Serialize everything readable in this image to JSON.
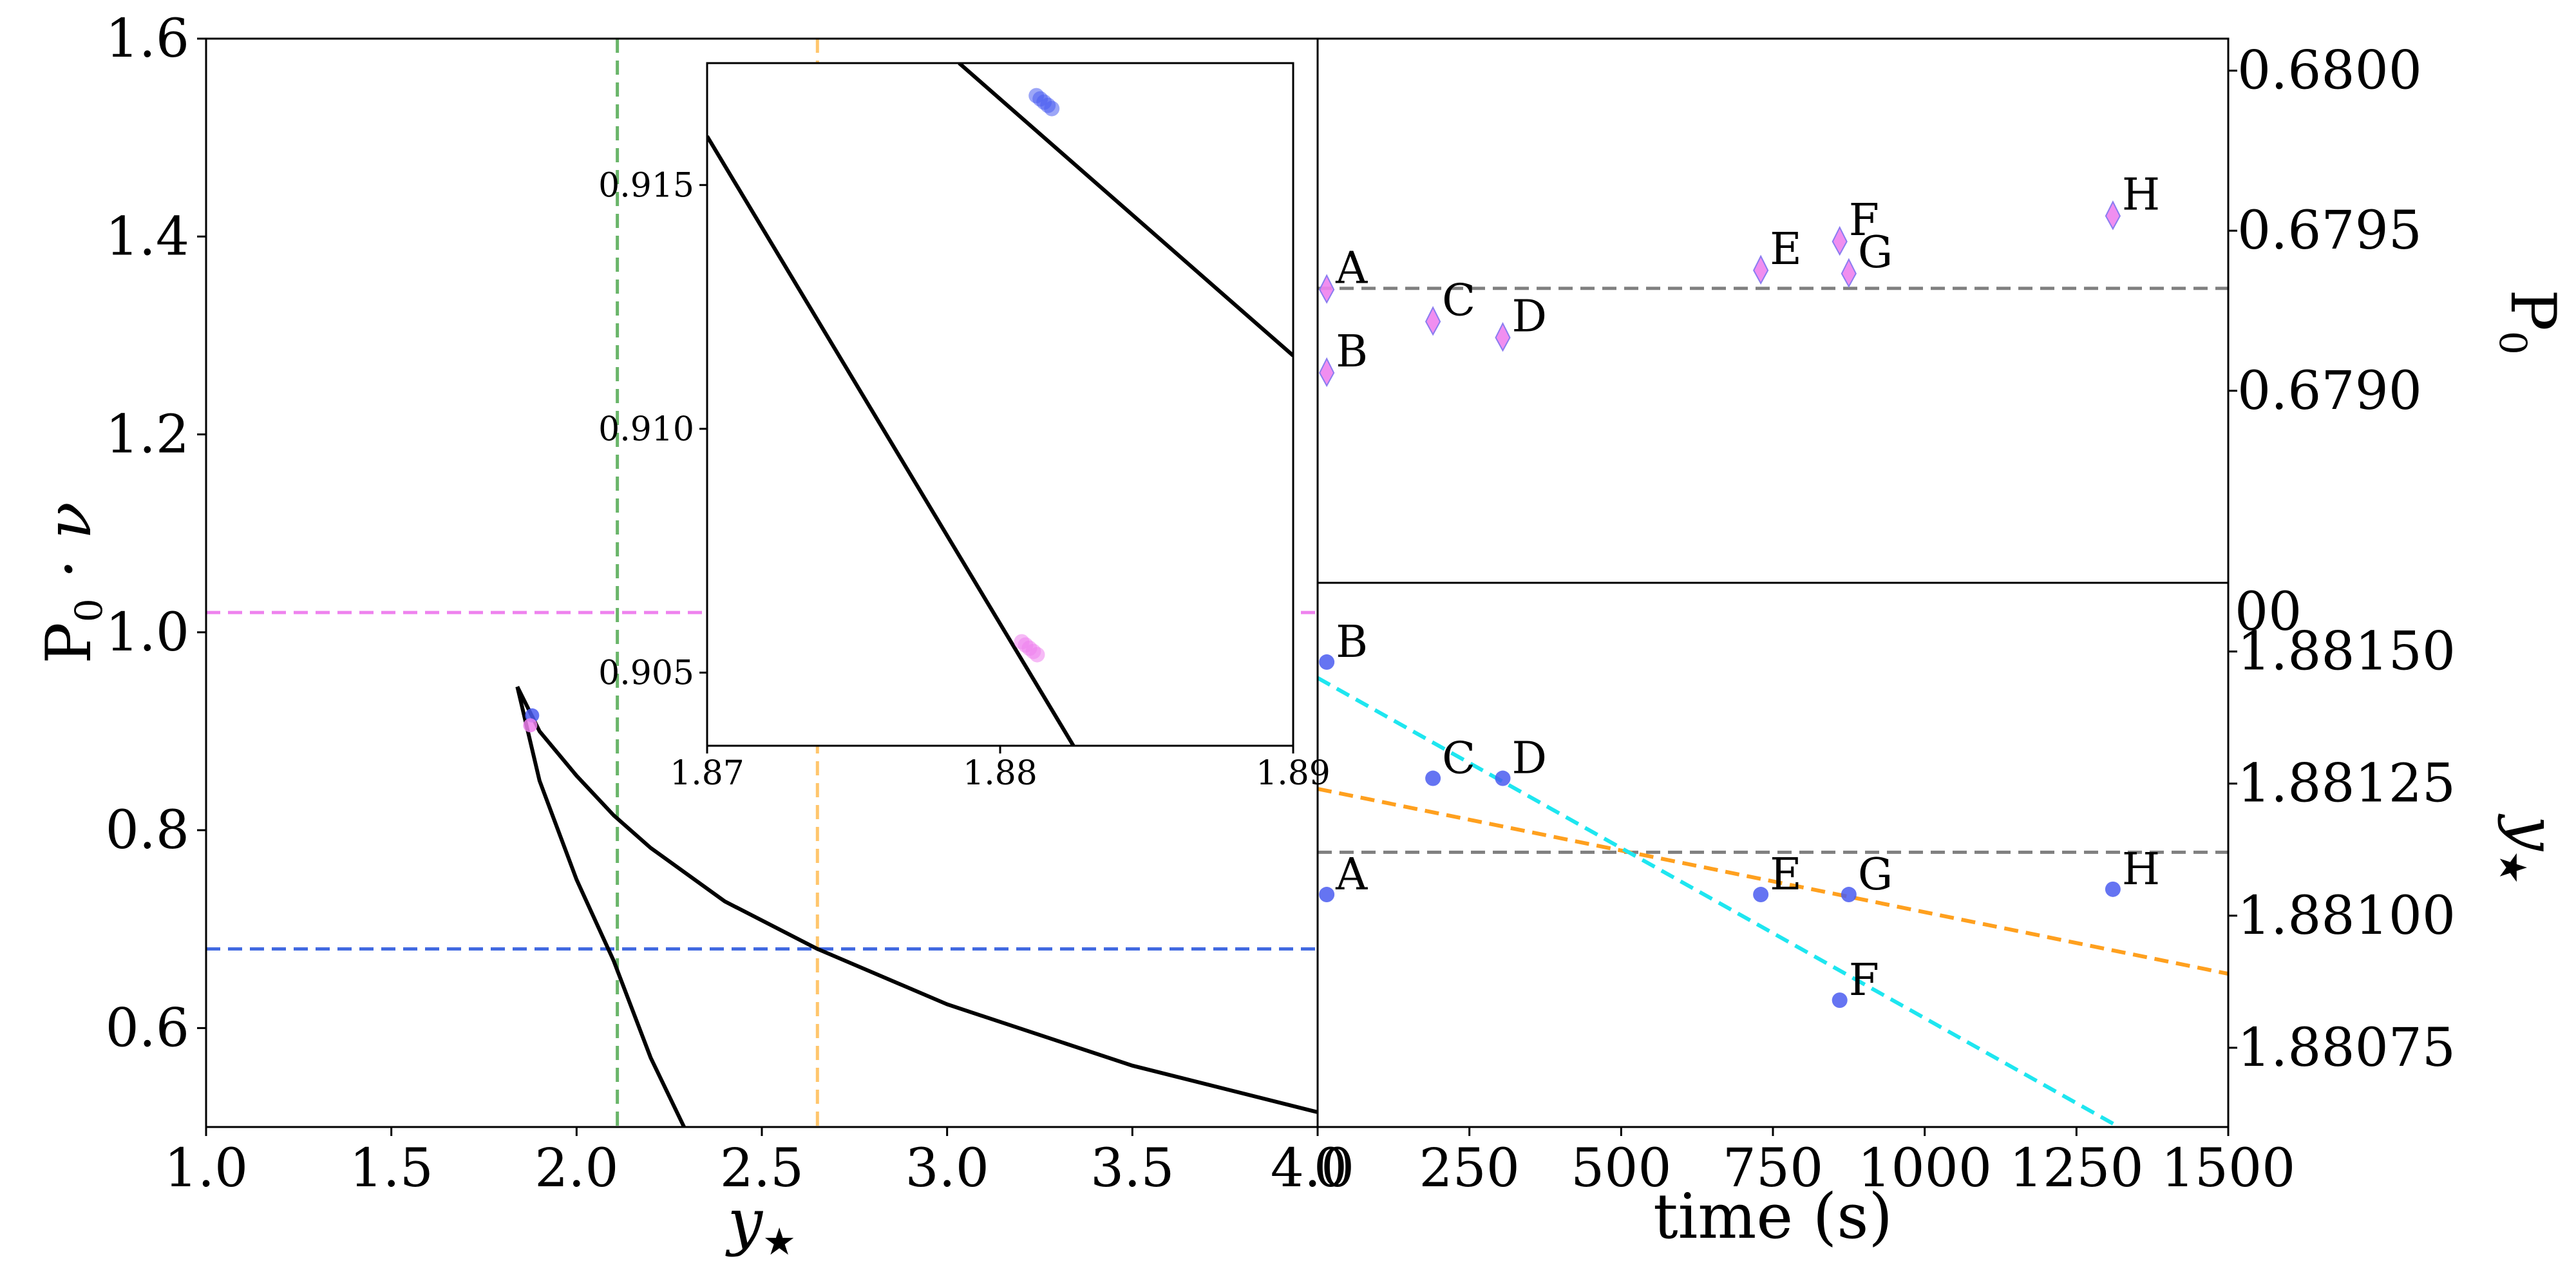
{
  "chart_data": [
    {
      "id": "main",
      "type": "line",
      "xlabel_sym": "y",
      "xlabel_sub": "★",
      "ylabel_main": "P",
      "ylabel_sub": "0",
      "ylabel_rest": " · ν",
      "xlim": [
        1.0,
        4.0
      ],
      "ylim": [
        0.5,
        1.6
      ],
      "xticks": [
        1.0,
        1.5,
        2.0,
        2.5,
        3.0,
        3.5,
        4.0
      ],
      "xtick_labels": [
        "1.0",
        "1.5",
        "2.0",
        "2.5",
        "3.0",
        "3.5",
        "4.0"
      ],
      "yticks": [
        0.6,
        0.8,
        1.0,
        1.2,
        1.4,
        1.6
      ],
      "ytick_labels": [
        "0.6",
        "0.8",
        "1.0",
        "1.2",
        "1.4",
        "1.6"
      ],
      "curves": [
        {
          "name": "upper-branch",
          "color": "#000000",
          "points": [
            [
              1.84,
              0.945
            ],
            [
              1.9,
              0.9
            ],
            [
              2.0,
              0.855
            ],
            [
              2.1,
              0.815
            ],
            [
              2.2,
              0.782
            ],
            [
              2.4,
              0.728
            ],
            [
              2.65,
              0.68
            ],
            [
              3.0,
              0.624
            ],
            [
              3.5,
              0.562
            ],
            [
              4.0,
              0.515
            ]
          ]
        },
        {
          "name": "lower-branch",
          "color": "#000000",
          "points": [
            [
              1.84,
              0.945
            ],
            [
              1.9,
              0.85
            ],
            [
              2.0,
              0.75
            ],
            [
              2.1,
              0.668
            ],
            [
              2.2,
              0.57
            ],
            [
              2.29,
              0.5
            ]
          ]
        }
      ],
      "hlines": [
        {
          "name": "magenta",
          "y": 1.02,
          "color": "#ee82ee"
        },
        {
          "name": "blue",
          "y": 0.68,
          "color": "#4169e1"
        }
      ],
      "vlines": [
        {
          "name": "green",
          "x": 2.11,
          "color": "#6ab56a"
        },
        {
          "name": "orange",
          "x": 2.65,
          "color": "#ffc66d"
        }
      ],
      "points": [
        {
          "name": "blue-dot",
          "x": 1.88,
          "y": 0.916,
          "color": "#4a5cf0",
          "shape": "circle"
        },
        {
          "name": "magenta-dot",
          "x": 1.875,
          "y": 0.906,
          "color": "#ee82ee",
          "shape": "circle"
        }
      ]
    },
    {
      "id": "inset",
      "type": "line",
      "xlim": [
        1.87,
        1.89
      ],
      "ylim": [
        0.9035,
        0.9175
      ],
      "xticks": [
        1.87,
        1.88,
        1.89
      ],
      "xtick_labels": [
        "1.87",
        "1.88",
        "1.89"
      ],
      "yticks": [
        0.905,
        0.91,
        0.915
      ],
      "ytick_labels": [
        "0.905",
        "0.910",
        "0.915"
      ],
      "curves": [
        {
          "name": "upper-branch",
          "color": "#000000",
          "points": [
            [
              1.8786,
              0.9175
            ],
            [
              1.89,
              0.9115
            ]
          ]
        },
        {
          "name": "lower-branch",
          "color": "#000000",
          "points": [
            [
              1.87,
              0.916
            ],
            [
              1.8825,
              0.9035
            ]
          ]
        }
      ],
      "points": [
        {
          "name": "blue-cluster",
          "x": 1.8815,
          "y": 0.9167,
          "color": "#4a5cf0"
        },
        {
          "name": "magenta-cluster",
          "x": 1.881,
          "y": 0.9055,
          "color": "#ee82ee"
        }
      ]
    },
    {
      "id": "top-right",
      "type": "scatter",
      "ylabel_main": "P",
      "ylabel_sub": "0",
      "xlim": [
        0,
        1500
      ],
      "ylim": [
        0.6784,
        0.6801
      ],
      "yticks": [
        0.679,
        0.6795,
        0.68
      ],
      "ytick_labels": [
        "0.6790",
        "0.6795",
        "0.6800"
      ],
      "reference_line": {
        "y": 0.67932,
        "color": "#808080"
      },
      "points": [
        {
          "label": "A",
          "x": 15,
          "y": 0.67932
        },
        {
          "label": "B",
          "x": 15,
          "y": 0.67906
        },
        {
          "label": "C",
          "x": 190,
          "y": 0.67922
        },
        {
          "label": "D",
          "x": 305,
          "y": 0.67917
        },
        {
          "label": "E",
          "x": 730,
          "y": 0.67938
        },
        {
          "label": "F",
          "x": 860,
          "y": 0.67947
        },
        {
          "label": "G",
          "x": 875,
          "y": 0.67937
        },
        {
          "label": "H",
          "x": 1310,
          "y": 0.67955
        }
      ],
      "marker_color": "#ee82ee"
    },
    {
      "id": "bottom-right",
      "type": "scatter",
      "xlabel": "time (s)",
      "ylabel_sym": "y",
      "ylabel_sub": "★",
      "xlim": [
        0,
        1500
      ],
      "ylim": [
        1.8806,
        1.88163
      ],
      "xticks": [
        0,
        250,
        500,
        750,
        1000,
        1250,
        1500
      ],
      "xtick_labels": [
        "0",
        "250",
        "500",
        "750",
        "1000",
        "1250",
        "1500"
      ],
      "yticks": [
        1.88075,
        1.881,
        1.88125,
        1.8815
      ],
      "ytick_labels": [
        "1.88075",
        "1.88100",
        "1.88125",
        "1.88150"
      ],
      "top_clipped_label": "00",
      "reference_line": {
        "y": 1.88112,
        "color": "#808080"
      },
      "fit_lines": [
        {
          "name": "orange-fit",
          "color": "#ffa01e",
          "from": [
            0,
            1.88124
          ],
          "to": [
            1500,
            1.88089
          ]
        },
        {
          "name": "cyan-fit",
          "color": "#1ee6f0",
          "from": [
            0,
            1.88145
          ],
          "to": [
            1320,
            1.8806
          ]
        }
      ],
      "points": [
        {
          "label": "A",
          "x": 15,
          "y": 1.88104
        },
        {
          "label": "B",
          "x": 15,
          "y": 1.88148
        },
        {
          "label": "C",
          "x": 190,
          "y": 1.88126
        },
        {
          "label": "D",
          "x": 305,
          "y": 1.88126
        },
        {
          "label": "E",
          "x": 730,
          "y": 1.88104
        },
        {
          "label": "F",
          "x": 860,
          "y": 1.88084
        },
        {
          "label": "G",
          "x": 875,
          "y": 1.88104
        },
        {
          "label": "H",
          "x": 1310,
          "y": 1.88105
        }
      ],
      "marker_color": "#4a5cf0"
    }
  ]
}
